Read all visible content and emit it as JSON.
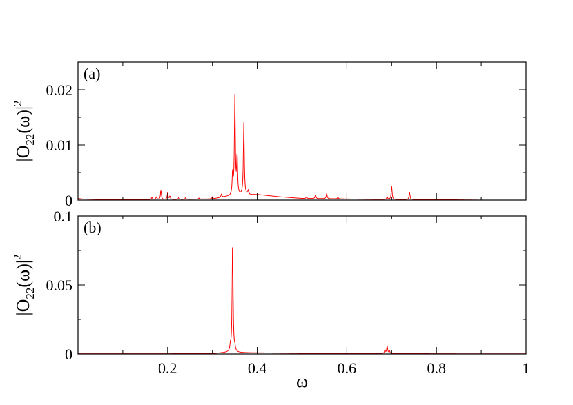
{
  "colors": {
    "series": "#ff0000",
    "axes": "#000000",
    "background": "#ffffff"
  },
  "chart_data": [
    {
      "type": "line",
      "panel_label": "(a)",
      "ylabel": {
        "prefix": "|O",
        "sub": "22",
        "mid": "(ω)|",
        "sup": "2"
      },
      "xlim": [
        0,
        1
      ],
      "ylim": [
        0,
        0.025
      ],
      "y_ticks": [
        0,
        0.01,
        0.02
      ],
      "y_tick_labels": [
        "0",
        "0.01",
        "0.02"
      ],
      "x_ticks": [
        0.2,
        0.4,
        0.6,
        0.8,
        1
      ],
      "x_tick_labels": [
        "",
        "",
        "",
        "",
        ""
      ],
      "grid": false,
      "baseline": {
        "x": [
          0,
          0.01,
          0.05,
          0.1,
          0.2,
          0.3,
          0.33,
          0.4,
          0.45,
          0.5,
          0.6,
          0.7,
          0.8,
          0.9,
          1.0
        ],
        "y": [
          0.0003,
          0.0002,
          0.0001,
          0.0001,
          0.0001,
          0.0002,
          0.0006,
          0.001,
          0.0006,
          0.0003,
          0.0002,
          0.0001,
          0.0001,
          0.0,
          0.0
        ]
      },
      "peaks": [
        {
          "x": 0.165,
          "y": 0.0004
        },
        {
          "x": 0.175,
          "y": 0.0005
        },
        {
          "x": 0.185,
          "y": 0.0017
        },
        {
          "x": 0.2,
          "y": 0.0012
        },
        {
          "x": 0.205,
          "y": 0.0006
        },
        {
          "x": 0.225,
          "y": 0.0004
        },
        {
          "x": 0.24,
          "y": 0.0003
        },
        {
          "x": 0.27,
          "y": 0.0002
        },
        {
          "x": 0.3,
          "y": 0.0004
        },
        {
          "x": 0.32,
          "y": 0.0006
        },
        {
          "x": 0.345,
          "y": 0.004
        },
        {
          "x": 0.35,
          "y": 0.0178
        },
        {
          "x": 0.355,
          "y": 0.007
        },
        {
          "x": 0.37,
          "y": 0.0131
        },
        {
          "x": 0.38,
          "y": 0.0008
        },
        {
          "x": 0.51,
          "y": 0.0003
        },
        {
          "x": 0.53,
          "y": 0.0007
        },
        {
          "x": 0.555,
          "y": 0.001
        },
        {
          "x": 0.58,
          "y": 0.0003
        },
        {
          "x": 0.69,
          "y": 0.0005
        },
        {
          "x": 0.7,
          "y": 0.0024
        },
        {
          "x": 0.74,
          "y": 0.0013
        }
      ]
    },
    {
      "type": "line",
      "panel_label": "(b)",
      "ylabel": {
        "prefix": "|O",
        "sub": "22",
        "mid": "(ω)|",
        "sup": "2"
      },
      "xlabel": "ω",
      "xlim": [
        0,
        1
      ],
      "ylim": [
        0,
        0.1
      ],
      "y_ticks": [
        0,
        0.05,
        0.1
      ],
      "y_tick_labels": [
        "0",
        "0.05",
        "0.1"
      ],
      "x_ticks": [
        0.2,
        0.4,
        0.6,
        0.8,
        1
      ],
      "x_tick_labels": [
        "0.2",
        "0.4",
        "0.6",
        "0.8",
        "1"
      ],
      "grid": false,
      "baseline": {
        "x": [
          0,
          0.1,
          0.2,
          0.3,
          0.33,
          0.4,
          0.5,
          0.6,
          0.7,
          0.8,
          0.9,
          1.0
        ],
        "y": [
          0.0002,
          0.0002,
          0.0002,
          0.0003,
          0.001,
          0.0008,
          0.0005,
          0.0004,
          0.0003,
          0.0002,
          0.0001,
          0.0001
        ]
      },
      "peaks": [
        {
          "x": 0.34,
          "y": 0.004
        },
        {
          "x": 0.345,
          "y": 0.0835
        },
        {
          "x": 0.35,
          "y": 0.003
        },
        {
          "x": 0.685,
          "y": 0.0025
        },
        {
          "x": 0.69,
          "y": 0.0055
        },
        {
          "x": 0.695,
          "y": 0.002
        }
      ]
    }
  ]
}
